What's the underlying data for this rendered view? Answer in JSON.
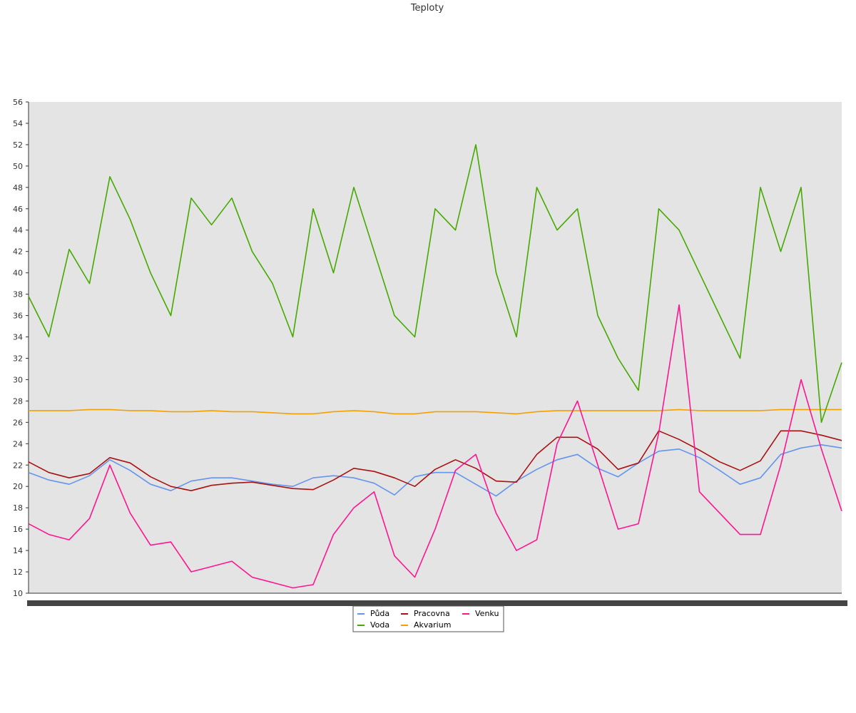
{
  "chart_data": {
    "type": "line",
    "title": "Teploty",
    "xlabel": "",
    "ylabel": "",
    "ylim": [
      10,
      56
    ],
    "yticks": [
      10,
      12,
      14,
      16,
      18,
      20,
      22,
      24,
      26,
      28,
      30,
      32,
      34,
      36,
      38,
      40,
      42,
      44,
      46,
      48,
      50,
      52,
      54,
      56
    ],
    "grid": false,
    "legend": "bottom-center",
    "x": [
      0,
      6,
      12,
      18,
      24,
      30,
      36,
      42,
      48,
      54,
      60,
      66,
      72,
      78,
      84,
      90,
      96,
      102,
      108,
      114,
      120,
      126,
      132,
      138,
      144,
      150,
      156,
      162,
      168,
      174,
      180,
      186,
      192,
      198,
      204,
      210,
      216,
      222,
      228,
      234,
      240
    ],
    "series": [
      {
        "name": "Půda",
        "color": "#6495ED",
        "values": [
          21.3,
          20.6,
          20.2,
          21.0,
          22.5,
          21.5,
          20.2,
          19.6,
          20.5,
          20.8,
          20.8,
          20.5,
          20.2,
          20.0,
          20.8,
          21.0,
          20.8,
          20.3,
          19.2,
          20.9,
          21.3,
          21.3,
          20.2,
          19.1,
          20.5,
          21.6,
          22.5,
          23.0,
          21.7,
          20.9,
          22.2,
          23.3,
          23.5,
          22.7,
          21.5,
          20.2,
          20.8,
          23.0,
          23.6,
          23.9,
          23.6
        ]
      },
      {
        "name": "Voda",
        "color": "#44AA00",
        "values": [
          37.8,
          34.0,
          42.2,
          39.0,
          49.0,
          45.0,
          40.0,
          36.0,
          47.0,
          44.5,
          47.0,
          42.0,
          39.0,
          34.0,
          46.0,
          40.0,
          48.0,
          42.0,
          36.0,
          34.0,
          46.0,
          44.0,
          52.0,
          40.0,
          34.0,
          48.0,
          44.0,
          46.0,
          36.0,
          32.0,
          29.0,
          46.0,
          44.0,
          40.0,
          36.0,
          32.0,
          48.0,
          42.0,
          48.0,
          26.0,
          31.6
        ]
      },
      {
        "name": "Pracovna",
        "color": "#AA1111",
        "values": [
          22.3,
          21.3,
          20.8,
          21.2,
          22.7,
          22.2,
          20.9,
          20.0,
          19.6,
          20.1,
          20.3,
          20.4,
          20.1,
          19.8,
          19.7,
          20.6,
          21.7,
          21.4,
          20.8,
          20.0,
          21.6,
          22.5,
          21.7,
          20.5,
          20.4,
          23.0,
          24.6,
          24.6,
          23.5,
          21.6,
          22.2,
          25.2,
          24.4,
          23.4,
          22.3,
          21.5,
          22.4,
          25.2,
          25.2,
          24.8,
          24.3
        ]
      },
      {
        "name": "Akvarium",
        "color": "#F5A000",
        "values": [
          27.1,
          27.1,
          27.1,
          27.2,
          27.2,
          27.1,
          27.1,
          27.0,
          27.0,
          27.1,
          27.0,
          27.0,
          26.9,
          26.8,
          26.8,
          27.0,
          27.1,
          27.0,
          26.8,
          26.8,
          27.0,
          27.0,
          27.0,
          26.9,
          26.8,
          27.0,
          27.1,
          27.1,
          27.1,
          27.1,
          27.1,
          27.1,
          27.2,
          27.1,
          27.1,
          27.1,
          27.1,
          27.2,
          27.2,
          27.2,
          27.2
        ]
      },
      {
        "name": "Venku",
        "color": "#FF1493",
        "values": [
          16.5,
          15.5,
          15.0,
          17.0,
          22.0,
          17.5,
          14.5,
          14.8,
          12.0,
          12.5,
          13.0,
          11.5,
          11.0,
          10.5,
          10.8,
          15.5,
          18.0,
          19.5,
          13.5,
          11.5,
          16.0,
          21.5,
          23.0,
          17.5,
          14.0,
          15.0,
          24.0,
          28.0,
          22.0,
          16.0,
          16.5,
          25.0,
          37.0,
          19.5,
          17.5,
          15.5,
          15.5,
          22.0,
          30.0,
          23.5,
          17.7
        ]
      }
    ]
  }
}
